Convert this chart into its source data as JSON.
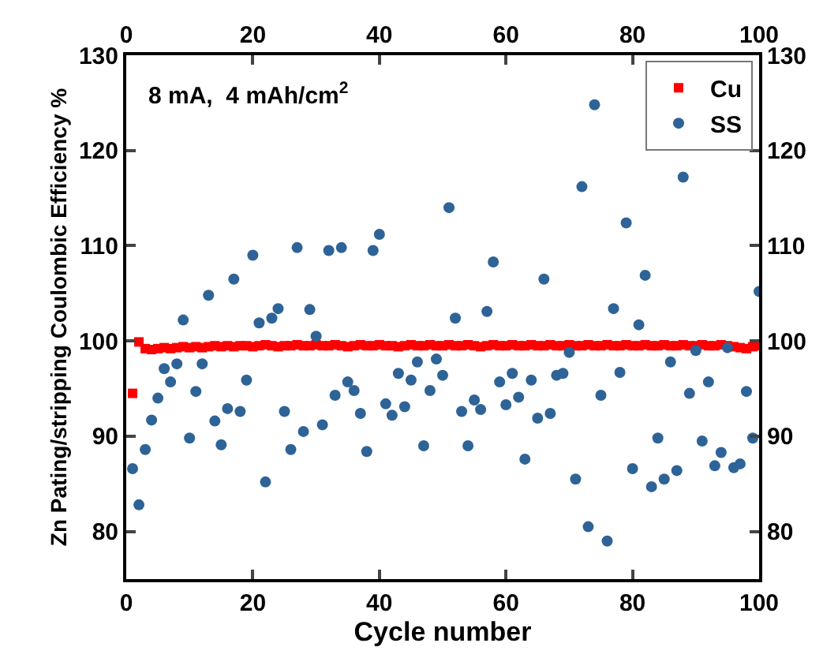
{
  "chart_data": {
    "type": "scatter",
    "xlabel": "Cycle number",
    "ylabel": "Zn Pating/stripping Coulombic Efficiency %",
    "annotations": [
      "8 mA,  4 mAh/cm$^{2}$"
    ],
    "x": [
      1,
      2,
      3,
      4,
      5,
      6,
      7,
      8,
      9,
      10,
      11,
      12,
      13,
      14,
      15,
      16,
      17,
      18,
      19,
      20,
      21,
      22,
      23,
      24,
      25,
      26,
      27,
      28,
      29,
      30,
      31,
      32,
      33,
      34,
      35,
      36,
      37,
      38,
      39,
      40,
      41,
      42,
      43,
      44,
      45,
      46,
      47,
      48,
      49,
      50,
      51,
      52,
      53,
      54,
      55,
      56,
      57,
      58,
      59,
      60,
      61,
      62,
      63,
      64,
      65,
      66,
      67,
      68,
      69,
      70,
      71,
      72,
      73,
      74,
      75,
      76,
      77,
      78,
      79,
      80,
      81,
      82,
      83,
      84,
      85,
      86,
      87,
      88,
      89,
      90,
      91,
      92,
      93,
      94,
      95,
      96,
      97,
      98,
      99,
      100
    ],
    "series": [
      {
        "name": "Cu",
        "color": "#ff0000",
        "marker": "square",
        "values": [
          94.5,
          99.9,
          99.2,
          99.1,
          99.2,
          99.3,
          99.2,
          99.3,
          99.4,
          99.3,
          99.4,
          99.3,
          99.4,
          99.5,
          99.4,
          99.5,
          99.4,
          99.5,
          99.5,
          99.4,
          99.5,
          99.6,
          99.5,
          99.4,
          99.5,
          99.5,
          99.6,
          99.5,
          99.5,
          99.6,
          99.5,
          99.5,
          99.6,
          99.5,
          99.4,
          99.5,
          99.6,
          99.5,
          99.5,
          99.6,
          99.5,
          99.5,
          99.4,
          99.5,
          99.6,
          99.5,
          99.5,
          99.6,
          99.5,
          99.5,
          99.6,
          99.5,
          99.5,
          99.6,
          99.5,
          99.4,
          99.5,
          99.6,
          99.5,
          99.5,
          99.6,
          99.5,
          99.5,
          99.6,
          99.5,
          99.5,
          99.6,
          99.5,
          99.5,
          99.6,
          99.5,
          99.5,
          99.6,
          99.5,
          99.5,
          99.6,
          99.5,
          99.5,
          99.6,
          99.5,
          99.5,
          99.6,
          99.5,
          99.5,
          99.6,
          99.5,
          99.5,
          99.6,
          99.5,
          99.5,
          99.6,
          99.5,
          99.5,
          99.6,
          99.5,
          99.4,
          99.3,
          99.2,
          99.4,
          99.5
        ]
      },
      {
        "name": "SS",
        "color": "#2e6397",
        "marker": "circle",
        "values": [
          86.6,
          82.8,
          88.6,
          91.7,
          94.0,
          97.1,
          95.7,
          97.6,
          102.2,
          89.8,
          94.7,
          97.6,
          104.8,
          91.6,
          89.1,
          92.9,
          106.5,
          92.6,
          95.9,
          109.0,
          101.9,
          85.2,
          102.4,
          103.4,
          92.6,
          88.6,
          109.8,
          90.5,
          103.3,
          100.5,
          91.2,
          109.5,
          94.3,
          109.8,
          95.7,
          94.8,
          92.4,
          88.4,
          109.5,
          111.2,
          93.4,
          92.2,
          96.6,
          93.1,
          95.9,
          97.8,
          89.0,
          94.8,
          98.1,
          96.4,
          114.0,
          102.4,
          92.6,
          89.0,
          93.8,
          92.8,
          103.1,
          108.3,
          95.7,
          93.3,
          96.6,
          94.1,
          87.6,
          95.9,
          91.9,
          106.5,
          92.4,
          96.4,
          96.6,
          98.8,
          85.5,
          116.2,
          80.5,
          124.8,
          94.3,
          79.0,
          103.4,
          96.7,
          112.4,
          86.6,
          101.7,
          106.9,
          84.7,
          89.8,
          85.5,
          97.8,
          86.4,
          117.2,
          94.5,
          99.0,
          89.5,
          95.7,
          86.9,
          88.3,
          99.3,
          86.7,
          87.1,
          94.7,
          89.8,
          105.2
        ]
      }
    ],
    "xlim": [
      0,
      100
    ],
    "xticks": [
      0,
      20,
      40,
      60,
      80,
      100
    ],
    "x2lim": [
      0,
      100
    ],
    "x2ticks": [
      0,
      20,
      40,
      60,
      80,
      100
    ],
    "ylim": [
      75,
      130
    ],
    "yticks": [
      80,
      90,
      100,
      110,
      120,
      130
    ],
    "y2lim": [
      75,
      130
    ],
    "y2ticks": [
      80,
      90,
      100,
      110,
      120,
      130
    ],
    "legend": "top right"
  }
}
